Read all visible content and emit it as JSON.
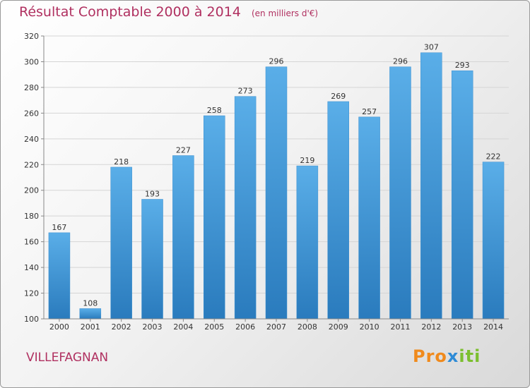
{
  "header": {
    "title": "Résultat Comptable 2000 à 2014",
    "subtitle": "(en milliers d'€)"
  },
  "footer": {
    "town": "VILLEFAGNAN",
    "logo_part1": "Pro",
    "logo_part2": "x",
    "logo_part3": "iti"
  },
  "colors": {
    "title": "#b03060",
    "bar_top": "#5aaee8",
    "bar_bottom": "#2a7bbd",
    "grid": "#d5d5d5",
    "axis": "#888888"
  },
  "chart_data": {
    "type": "bar",
    "title": "Résultat Comptable 2000 à 2014",
    "subtitle": "(en milliers d'€)",
    "categories": [
      "2000",
      "2001",
      "2002",
      "2003",
      "2004",
      "2005",
      "2006",
      "2007",
      "2008",
      "2009",
      "2010",
      "2011",
      "2012",
      "2013",
      "2014"
    ],
    "values": [
      167,
      108,
      218,
      193,
      227,
      258,
      273,
      296,
      219,
      269,
      257,
      296,
      307,
      293,
      222
    ],
    "ylim": [
      100,
      320
    ],
    "yticks": [
      100,
      120,
      140,
      160,
      180,
      200,
      220,
      240,
      260,
      280,
      300,
      320
    ],
    "grid": true,
    "legend": "none"
  }
}
